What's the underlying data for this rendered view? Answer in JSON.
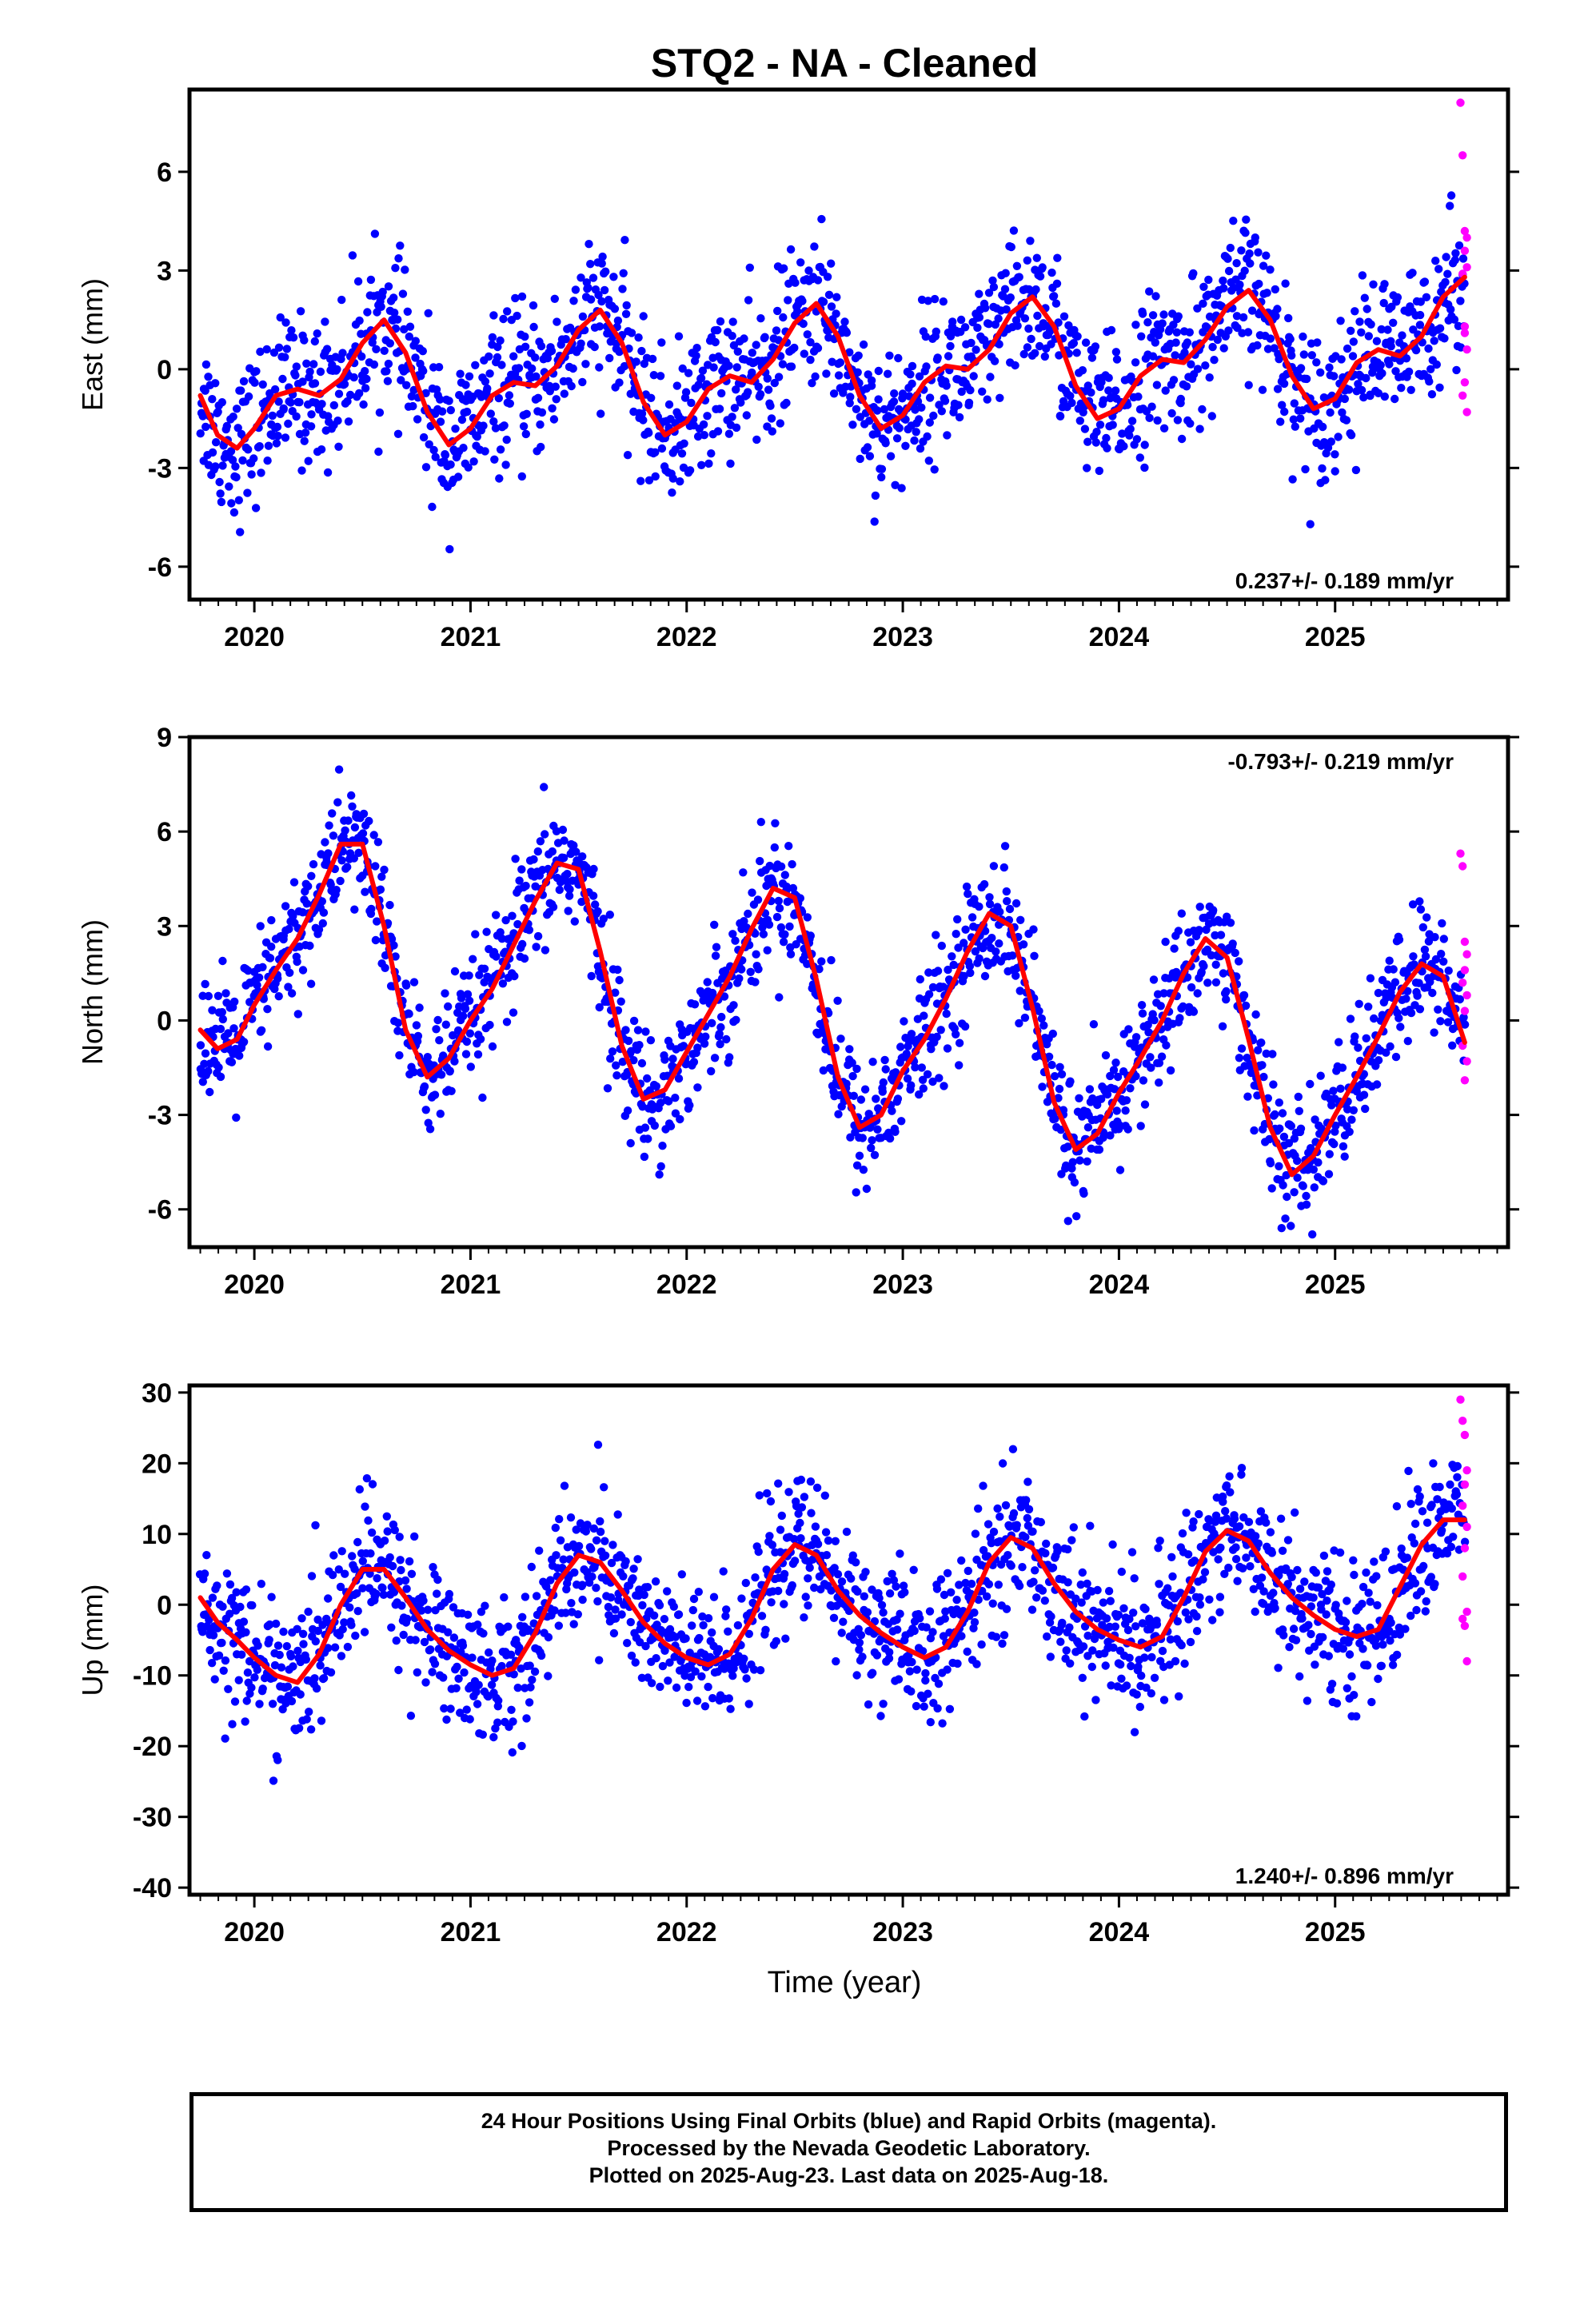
{
  "title": "STQ2  - NA - Cleaned",
  "x_axis_label": "Time (year)",
  "footer": {
    "line1": "24 Hour Positions Using Final Orbits (blue) and Rapid Orbits (magenta).",
    "line2": "Processed by the Nevada Geodetic Laboratory.",
    "line3": "Plotted on 2025-Aug-23. Last data on 2025-Aug-18."
  },
  "colors": {
    "final_orbits": "#0000ff",
    "rapid_orbits": "#ff00ff",
    "model_fit": "#ff0000",
    "frame": "#000000"
  },
  "chart_data": [
    {
      "type": "scatter",
      "panel": "east",
      "ylabel": "East (mm)",
      "rate_label": "0.237+/- 0.189 mm/yr",
      "rate_position": "bottom-right",
      "xlim": [
        2019.7,
        2025.8
      ],
      "ylim": [
        -7,
        8.5
      ],
      "xticks": [
        "2020",
        "2021",
        "2022",
        "2023",
        "2024",
        "2025"
      ],
      "yticks": [
        "-6",
        "-3",
        "0",
        "3",
        "6"
      ],
      "fit_curve": {
        "x": [
          2019.75,
          2019.83,
          2019.92,
          2020.0,
          2020.1,
          2020.2,
          2020.3,
          2020.4,
          2020.5,
          2020.6,
          2020.7,
          2020.8,
          2020.9,
          2021.0,
          2021.1,
          2021.2,
          2021.3,
          2021.4,
          2021.5,
          2021.6,
          2021.7,
          2021.8,
          2021.9,
          2022.0,
          2022.1,
          2022.2,
          2022.3,
          2022.4,
          2022.5,
          2022.6,
          2022.7,
          2022.8,
          2022.9,
          2023.0,
          2023.1,
          2023.2,
          2023.3,
          2023.4,
          2023.5,
          2023.6,
          2023.7,
          2023.8,
          2023.9,
          2024.0,
          2024.1,
          2024.2,
          2024.3,
          2024.4,
          2024.5,
          2024.6,
          2024.7,
          2024.8,
          2024.9,
          2025.0,
          2025.1,
          2025.2,
          2025.3,
          2025.4,
          2025.5,
          2025.6
        ],
        "y": [
          -0.8,
          -2.0,
          -2.4,
          -1.8,
          -0.8,
          -0.6,
          -0.8,
          -0.3,
          0.8,
          1.5,
          0.5,
          -1.3,
          -2.3,
          -1.8,
          -0.8,
          -0.4,
          -0.5,
          0.1,
          1.2,
          1.8,
          0.8,
          -1.0,
          -2.0,
          -1.6,
          -0.6,
          -0.2,
          -0.4,
          0.3,
          1.4,
          2.0,
          1.0,
          -0.8,
          -1.8,
          -1.4,
          -0.4,
          0.1,
          0.0,
          0.6,
          1.7,
          2.2,
          1.3,
          -0.5,
          -1.5,
          -1.2,
          -0.2,
          0.3,
          0.2,
          0.9,
          1.9,
          2.4,
          1.5,
          -0.2,
          -1.2,
          -0.9,
          0.2,
          0.6,
          0.4,
          1.0,
          2.2,
          2.8
        ]
      },
      "rapid_points": {
        "x": [
          2025.58,
          2025.59,
          2025.6,
          2025.61,
          2025.6,
          2025.61,
          2025.59,
          2025.6,
          2025.61,
          2025.6,
          2025.59,
          2025.61,
          2025.6
        ],
        "y": [
          8.1,
          6.5,
          4.2,
          4.0,
          3.6,
          3.1,
          2.9,
          1.3,
          0.6,
          -0.4,
          -0.8,
          -1.3,
          1.1
        ]
      }
    },
    {
      "type": "scatter",
      "panel": "north",
      "ylabel": "North (mm)",
      "rate_label": "-0.793+/- 0.219 mm/yr",
      "rate_position": "top-right",
      "xlim": [
        2019.7,
        2025.8
      ],
      "ylim": [
        -7.2,
        9.0
      ],
      "xticks": [
        "2020",
        "2021",
        "2022",
        "2023",
        "2024",
        "2025"
      ],
      "yticks": [
        "-6",
        "-3",
        "0",
        "3",
        "6",
        "9"
      ],
      "fit_curve": {
        "x": [
          2019.75,
          2019.83,
          2019.92,
          2020.0,
          2020.1,
          2020.2,
          2020.3,
          2020.4,
          2020.5,
          2020.6,
          2020.7,
          2020.8,
          2020.9,
          2021.0,
          2021.1,
          2021.2,
          2021.3,
          2021.4,
          2021.5,
          2021.6,
          2021.7,
          2021.8,
          2021.9,
          2022.0,
          2022.1,
          2022.2,
          2022.3,
          2022.4,
          2022.5,
          2022.6,
          2022.7,
          2022.8,
          2022.9,
          2023.0,
          2023.1,
          2023.2,
          2023.3,
          2023.4,
          2023.5,
          2023.6,
          2023.7,
          2023.8,
          2023.9,
          2024.0,
          2024.1,
          2024.2,
          2024.3,
          2024.4,
          2024.5,
          2024.6,
          2024.7,
          2024.8,
          2024.9,
          2025.0,
          2025.1,
          2025.2,
          2025.3,
          2025.4,
          2025.5,
          2025.6
        ],
        "y": [
          -0.3,
          -0.9,
          -0.6,
          0.5,
          1.6,
          2.6,
          4.0,
          5.6,
          5.6,
          3.0,
          -0.3,
          -1.8,
          -1.2,
          0.0,
          1.0,
          2.4,
          3.8,
          5.0,
          4.8,
          2.2,
          -0.8,
          -2.5,
          -2.2,
          -1.0,
          0.2,
          1.4,
          2.9,
          4.2,
          3.9,
          1.3,
          -1.8,
          -3.4,
          -3.0,
          -1.6,
          -0.6,
          0.7,
          2.2,
          3.4,
          3.0,
          0.4,
          -2.6,
          -4.1,
          -3.6,
          -2.3,
          -1.2,
          0.0,
          1.5,
          2.6,
          2.0,
          -0.6,
          -3.4,
          -4.9,
          -4.3,
          -3.0,
          -1.8,
          -0.5,
          0.9,
          1.8,
          1.4,
          -0.7
        ]
      },
      "rapid_points": {
        "x": [
          2025.58,
          2025.59,
          2025.6,
          2025.61,
          2025.6,
          2025.59,
          2025.61,
          2025.6,
          2025.59,
          2025.61,
          2025.6
        ],
        "y": [
          5.3,
          4.9,
          2.5,
          2.1,
          1.6,
          1.2,
          0.8,
          0.3,
          -0.8,
          -1.3,
          -1.9
        ]
      }
    },
    {
      "type": "scatter",
      "panel": "up",
      "ylabel": "Up (mm)",
      "rate_label": "1.240+/- 0.896 mm/yr",
      "rate_position": "bottom-right",
      "xlim": [
        2019.7,
        2025.8
      ],
      "ylim": [
        -41,
        31
      ],
      "xticks": [
        "2020",
        "2021",
        "2022",
        "2023",
        "2024",
        "2025"
      ],
      "yticks": [
        "-40",
        "-30",
        "-20",
        "-10",
        "0",
        "10",
        "20",
        "30"
      ],
      "fit_curve": {
        "x": [
          2019.75,
          2019.83,
          2019.92,
          2020.0,
          2020.1,
          2020.2,
          2020.3,
          2020.4,
          2020.5,
          2020.6,
          2020.7,
          2020.8,
          2020.9,
          2021.0,
          2021.1,
          2021.2,
          2021.3,
          2021.4,
          2021.5,
          2021.6,
          2021.7,
          2021.8,
          2021.9,
          2022.0,
          2022.1,
          2022.2,
          2022.3,
          2022.4,
          2022.5,
          2022.6,
          2022.7,
          2022.8,
          2022.9,
          2023.0,
          2023.1,
          2023.2,
          2023.3,
          2023.4,
          2023.5,
          2023.6,
          2023.7,
          2023.8,
          2023.9,
          2024.0,
          2024.1,
          2024.2,
          2024.3,
          2024.4,
          2024.5,
          2024.6,
          2024.7,
          2024.8,
          2024.9,
          2025.0,
          2025.1,
          2025.2,
          2025.3,
          2025.4,
          2025.5,
          2025.6
        ],
        "y": [
          1.0,
          -2.5,
          -5.0,
          -7.5,
          -10.0,
          -11.0,
          -7.0,
          0.0,
          5.0,
          5.0,
          1.0,
          -3.5,
          -6.5,
          -8.5,
          -10.0,
          -9.0,
          -4.0,
          3.0,
          7.0,
          6.0,
          2.0,
          -2.5,
          -5.5,
          -7.5,
          -8.5,
          -7.0,
          -2.0,
          5.0,
          8.5,
          7.0,
          2.0,
          -1.5,
          -4.0,
          -6.0,
          -7.5,
          -6.0,
          -1.0,
          6.0,
          9.5,
          8.0,
          3.0,
          -1.0,
          -3.5,
          -5.0,
          -6.0,
          -4.5,
          1.0,
          7.5,
          10.5,
          9.0,
          4.5,
          1.0,
          -1.5,
          -3.5,
          -4.5,
          -3.5,
          2.5,
          8.5,
          12.0,
          12.0
        ]
      },
      "rapid_points": {
        "x": [
          2025.58,
          2025.59,
          2025.6,
          2025.61,
          2025.6,
          2025.59,
          2025.61,
          2025.6,
          2025.59,
          2025.61,
          2025.6,
          2025.59,
          2025.61
        ],
        "y": [
          29.0,
          26.0,
          24.0,
          19.0,
          17.0,
          14.0,
          11.0,
          8.0,
          4.0,
          -1.0,
          -3.0,
          -2.0,
          -8.0
        ]
      }
    }
  ]
}
